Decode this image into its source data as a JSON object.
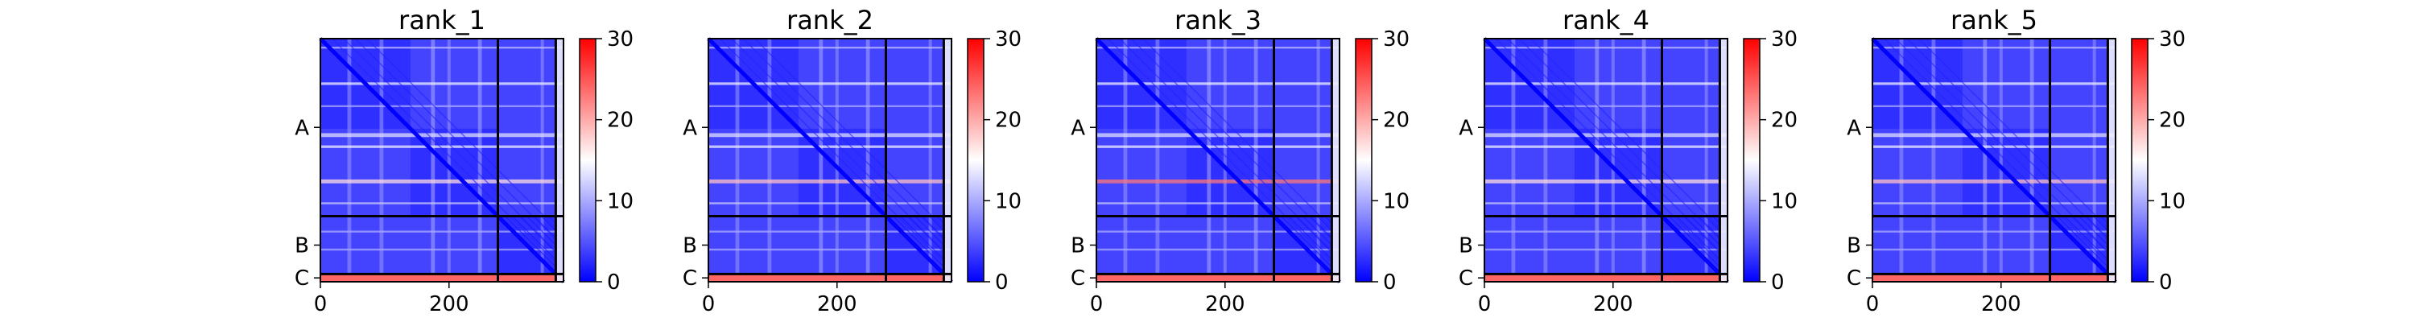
{
  "chart_data": {
    "type": "heatmap",
    "panels": [
      {
        "title": "rank_1"
      },
      {
        "title": "rank_2"
      },
      {
        "title": "rank_3"
      },
      {
        "title": "rank_4"
      },
      {
        "title": "rank_5"
      }
    ],
    "x_ticks": [
      "0",
      "200"
    ],
    "x_tick_values": [
      0,
      200
    ],
    "x_range": [
      0,
      378
    ],
    "chain_labels": [
      "A",
      "B",
      "C"
    ],
    "chain_boundaries": [
      276,
      366
    ],
    "colorbar": {
      "ticks": [
        "0",
        "10",
        "20",
        "30"
      ],
      "tick_values": [
        0,
        10,
        20,
        30
      ],
      "range": [
        0,
        30
      ],
      "colormap": "bwr",
      "colors": [
        "#0000ff",
        "#ffffff",
        "#ff0000"
      ]
    },
    "grid": false
  }
}
